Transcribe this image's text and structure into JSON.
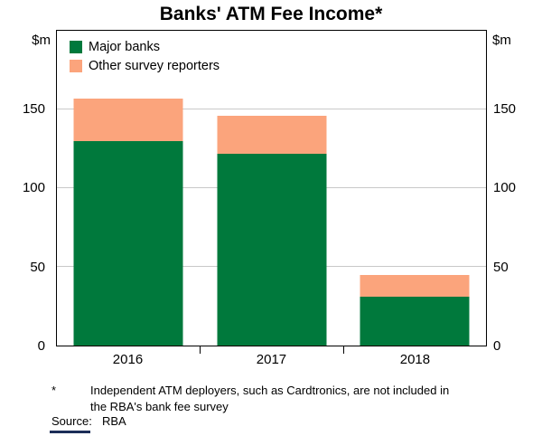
{
  "title": "Banks' ATM Fee Income*",
  "units": {
    "left": "$m",
    "right": "$m"
  },
  "footnote": {
    "marker": "*",
    "text": "Independent ATM deployers, such as Cardtronics, are not included in the RBA's bank fee survey",
    "source_label": "Source:",
    "source_value": "RBA"
  },
  "chart_data": {
    "type": "bar",
    "stacked": true,
    "title": "Banks' ATM Fee Income*",
    "categories": [
      "2016",
      "2017",
      "2018"
    ],
    "series": [
      {
        "name": "Major banks",
        "color": "#00793C",
        "values": [
          130,
          122,
          31
        ]
      },
      {
        "name": "Other survey reporters",
        "color": "#FBA47C",
        "values": [
          27,
          24,
          14
        ]
      }
    ],
    "totals": [
      157,
      146,
      45
    ],
    "ylabel": "$m",
    "ylim": [
      0,
      200
    ],
    "yticks": [
      0,
      50,
      100,
      150
    ],
    "gridlines": [
      50,
      100,
      150
    ],
    "grid": true,
    "legend_position": "top-left"
  }
}
